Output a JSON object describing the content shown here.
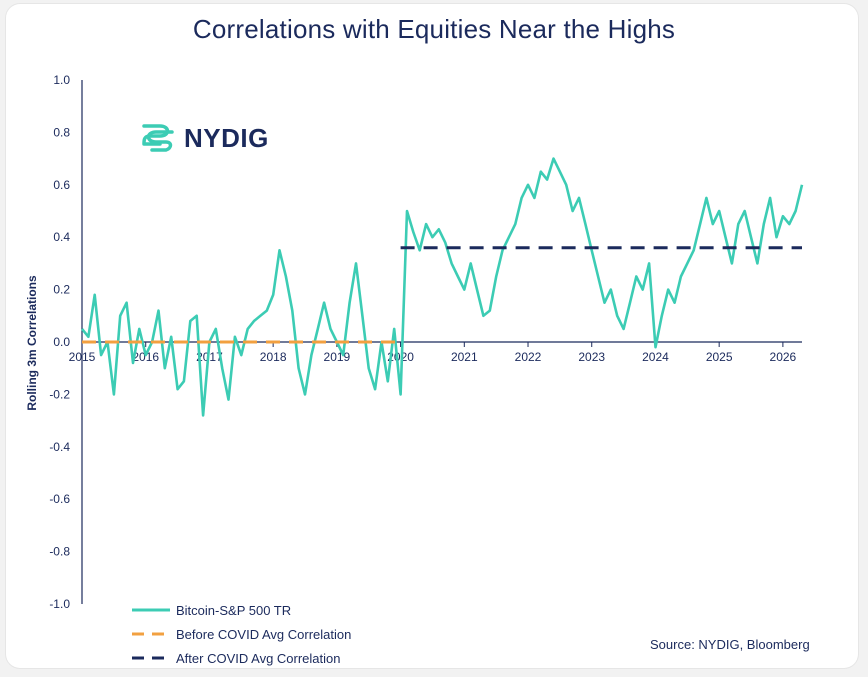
{
  "title": "Correlations with Equities Near the Highs",
  "logo": {
    "text": "NYDIG",
    "icon": "nydig-logo-icon"
  },
  "source": "Source: NYDIG, Bloomberg",
  "colors": {
    "series": "#3cccb4",
    "before": "#f2a040",
    "after": "#1b2a5c",
    "axis": "#1b2a5c"
  },
  "legend": [
    {
      "label": "Bitcoin-S&P 500 TR",
      "style": "solid",
      "color": "#3cccb4"
    },
    {
      "label": "Before COVID Avg Correlation",
      "style": "dashed",
      "color": "#f2a040"
    },
    {
      "label": "After COVID Avg Correlation",
      "style": "dashed",
      "color": "#1b2a5c"
    }
  ],
  "chart_data": {
    "type": "line",
    "title": "Correlations with Equities Near the Highs",
    "xlabel": "",
    "ylabel": "Rolling 3m Correlations",
    "xlim": [
      2015,
      2026.3
    ],
    "ylim": [
      -1.0,
      1.0
    ],
    "yticks": [
      "1.0",
      "0.8",
      "0.6",
      "0.4",
      "0.2",
      "0.0",
      "-0.2",
      "-0.4",
      "-0.6",
      "-0.8",
      "-1.0"
    ],
    "xticks": [
      "2015",
      "2016",
      "2017",
      "2018",
      "2019",
      "2020",
      "2021",
      "2022",
      "2023",
      "2024",
      "2025",
      "2026"
    ],
    "grid": false,
    "legend_position": "bottom-left",
    "series": [
      {
        "name": "Bitcoin-S&P 500 TR",
        "x": [
          2015.0,
          2015.1,
          2015.2,
          2015.3,
          2015.4,
          2015.5,
          2015.6,
          2015.7,
          2015.8,
          2015.9,
          2016.0,
          2016.1,
          2016.2,
          2016.3,
          2016.4,
          2016.5,
          2016.6,
          2016.7,
          2016.8,
          2016.9,
          2017.0,
          2017.1,
          2017.2,
          2017.3,
          2017.4,
          2017.5,
          2017.6,
          2017.7,
          2017.8,
          2017.9,
          2018.0,
          2018.1,
          2018.2,
          2018.3,
          2018.4,
          2018.5,
          2018.6,
          2018.7,
          2018.8,
          2018.9,
          2019.0,
          2019.1,
          2019.2,
          2019.3,
          2019.4,
          2019.5,
          2019.6,
          2019.7,
          2019.8,
          2019.9,
          2020.0,
          2020.1,
          2020.2,
          2020.3,
          2020.4,
          2020.5,
          2020.6,
          2020.7,
          2020.8,
          2020.9,
          2021.0,
          2021.1,
          2021.2,
          2021.3,
          2021.4,
          2021.5,
          2021.6,
          2021.7,
          2021.8,
          2021.9,
          2022.0,
          2022.1,
          2022.2,
          2022.3,
          2022.4,
          2022.5,
          2022.6,
          2022.7,
          2022.8,
          2022.9,
          2023.0,
          2023.1,
          2023.2,
          2023.3,
          2023.4,
          2023.5,
          2023.6,
          2023.7,
          2023.8,
          2023.9,
          2024.0,
          2024.1,
          2024.2,
          2024.3,
          2024.4,
          2024.5,
          2024.6,
          2024.7,
          2024.8,
          2024.9,
          2025.0,
          2025.1,
          2025.2,
          2025.3,
          2025.4,
          2025.5,
          2025.6,
          2025.7,
          2025.8,
          2025.9,
          2026.0,
          2026.1,
          2026.2,
          2026.3
        ],
        "values": [
          0.05,
          0.02,
          0.18,
          -0.05,
          0.0,
          -0.2,
          0.1,
          0.15,
          -0.08,
          0.05,
          -0.05,
          0.0,
          0.12,
          -0.1,
          0.02,
          -0.18,
          -0.15,
          0.08,
          0.1,
          -0.28,
          0.0,
          0.05,
          -0.1,
          -0.22,
          0.02,
          -0.05,
          0.05,
          0.08,
          0.1,
          0.12,
          0.18,
          0.35,
          0.25,
          0.12,
          -0.1,
          -0.2,
          -0.05,
          0.05,
          0.15,
          0.05,
          0.0,
          -0.05,
          0.15,
          0.3,
          0.1,
          -0.1,
          -0.18,
          0.0,
          -0.15,
          0.05,
          -0.2,
          0.5,
          0.42,
          0.35,
          0.45,
          0.4,
          0.43,
          0.38,
          0.3,
          0.25,
          0.2,
          0.3,
          0.2,
          0.1,
          0.12,
          0.25,
          0.35,
          0.4,
          0.45,
          0.55,
          0.6,
          0.55,
          0.65,
          0.62,
          0.7,
          0.65,
          0.6,
          0.5,
          0.55,
          0.45,
          0.35,
          0.25,
          0.15,
          0.2,
          0.1,
          0.05,
          0.15,
          0.25,
          0.2,
          0.3,
          -0.02,
          0.1,
          0.2,
          0.15,
          0.25,
          0.3,
          0.35,
          0.45,
          0.55,
          0.45,
          0.5,
          0.4,
          0.3,
          0.45,
          0.5,
          0.4,
          0.3,
          0.45,
          0.55,
          0.4,
          0.48,
          0.45,
          0.5,
          0.6
        ],
        "color": "#3cccb4"
      },
      {
        "name": "Before COVID Avg Correlation",
        "x": [
          2015.0,
          2020.0
        ],
        "values": [
          0.0,
          0.0
        ],
        "style": "dashed",
        "color": "#f2a040"
      },
      {
        "name": "After COVID Avg Correlation",
        "x": [
          2020.0,
          2026.3
        ],
        "values": [
          0.36,
          0.36
        ],
        "style": "dashed",
        "color": "#1b2a5c"
      }
    ]
  }
}
